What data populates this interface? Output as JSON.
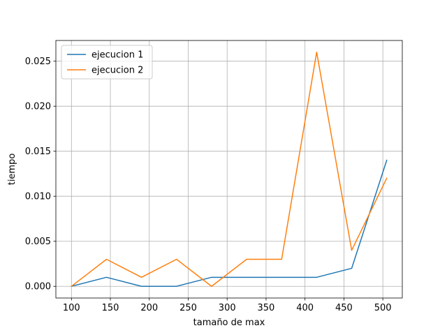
{
  "chart_data": {
    "type": "line",
    "title": "",
    "xlabel": "tamaño de max",
    "ylabel": "tiempo",
    "xlim": [
      80,
      525
    ],
    "ylim": [
      -0.0013,
      0.0273
    ],
    "xticks": [
      100,
      150,
      200,
      250,
      300,
      350,
      400,
      450,
      500
    ],
    "xtick_labels": [
      "100",
      "150",
      "200",
      "250",
      "300",
      "350",
      "400",
      "450",
      "500"
    ],
    "yticks": [
      0.0,
      0.005,
      0.01,
      0.015,
      0.02,
      0.025
    ],
    "ytick_labels": [
      "0.000",
      "0.005",
      "0.010",
      "0.015",
      "0.020",
      "0.025"
    ],
    "grid": true,
    "legend_position": "upper-left",
    "x": [
      100,
      145,
      190,
      235,
      280,
      325,
      370,
      415,
      460,
      505
    ],
    "series": [
      {
        "name": "ejecucion 1",
        "color": "#1f77b4",
        "values": [
          0.0,
          0.001,
          0.0,
          0.0,
          0.001,
          0.001,
          0.001,
          0.001,
          0.002,
          0.014
        ]
      },
      {
        "name": "ejecucion 2",
        "color": "#ff7f0e",
        "values": [
          0.0,
          0.003,
          0.001,
          0.003,
          0.0,
          0.003,
          0.003,
          0.026,
          0.004,
          0.012
        ]
      }
    ]
  }
}
